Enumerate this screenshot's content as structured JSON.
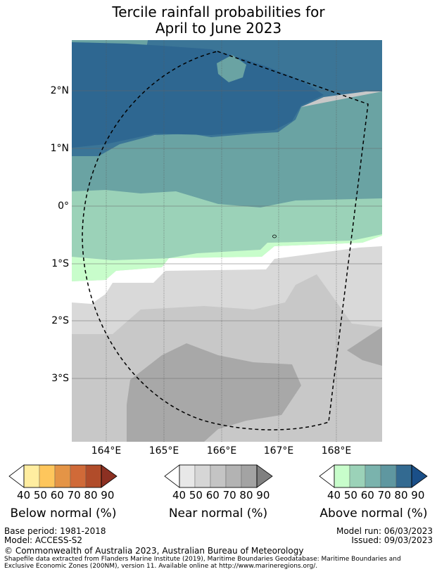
{
  "title": {
    "line1": "Tercile rainfall probabilities for",
    "line2": "April to June 2023"
  },
  "map": {
    "lat_labels": [
      "2°N",
      "1°N",
      "0°",
      "1°S",
      "2°S",
      "3°S"
    ],
    "lon_labels": [
      "164°E",
      "165°E",
      "166°E",
      "167°E",
      "168°E"
    ],
    "colors": {
      "above_90": "#2e6791",
      "above_80": "#3b7597",
      "above_70": "#6aa3a3",
      "above_60": "#9bd2b8",
      "above_50": "#c8fdcb",
      "near_50": "#d9d9d9",
      "near_60": "#c8c8c8",
      "near_70": "#a8a8a8"
    }
  },
  "legends": [
    {
      "title": "Below normal (%)",
      "ticks": "40 50 60 70 80 90",
      "colors": [
        "#ffffff",
        "#ffeda0",
        "#fec65c",
        "#e49446",
        "#d06a38",
        "#b14c2a",
        "#8c3022"
      ]
    },
    {
      "title": "Near normal (%)",
      "ticks": "40 50 60 70 80 90",
      "colors": [
        "#ffffff",
        "#e8e8e8",
        "#d6d6d6",
        "#c4c4c4",
        "#b3b3b3",
        "#a3a3a3",
        "#808080"
      ]
    },
    {
      "title": "Above normal (%)",
      "ticks": "40 50 60 70 80 90",
      "colors": [
        "#ffffff",
        "#c8fdcb",
        "#9bd2b8",
        "#7ab3ad",
        "#5f97a0",
        "#336a91",
        "#1a4f88"
      ]
    }
  ],
  "footer": {
    "base_period": "Base period: 1981-2018",
    "model": "Model: ACCESS-S2",
    "model_run": "Model run: 06/03/2023",
    "issued": "Issued: 09/03/2023",
    "copyright": "© Commonwealth of Australia 2023, Australian Bureau of Meteorology",
    "shapefile_line1": "Shapefile data extracted from Flanders Marine Institute (2019), Maritime Boundaries Geodatabase: Maritime Boundaries and",
    "shapefile_line2": "Exclusive Economic Zones (200NM), version 11. Available online at http://www.marineregions.org/."
  }
}
